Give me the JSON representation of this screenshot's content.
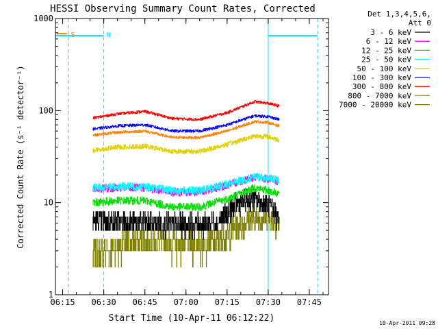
{
  "chart_data": {
    "type": "line",
    "title": "HESSI Observing Summary Count Rates, Corrected",
    "xlabel": "Start Time (10-Apr-11 06:12:22)",
    "ylabel": "Corrected Count Rate (s⁻¹ detector⁻¹)",
    "yscale": "log",
    "ylim": [
      1,
      1000
    ],
    "xlim": [
      "06:12:22",
      "07:52:00"
    ],
    "x_ticks": [
      "06:15",
      "06:30",
      "06:45",
      "07:00",
      "07:15",
      "07:30",
      "07:45"
    ],
    "y_ticks": [
      "1",
      "10",
      "100",
      "1000"
    ],
    "grid": false,
    "legend_position": "right, outside plot",
    "legend_header": [
      "Det 1,3,4,5,6,",
      "Att 0"
    ],
    "timestamp": "10-Apr-2011 09:28",
    "data_start": "06:26",
    "data_end": "07:34",
    "flags": [
      {
        "label": "S",
        "color": "#ff8000",
        "x": "06:17"
      },
      {
        "label": "N",
        "color": "#00e0ff",
        "x": "06:30"
      }
    ],
    "night_level": 650,
    "night_segments": [
      [
        "06:12:22",
        "06:30"
      ],
      [
        "07:30",
        "07:48"
      ]
    ],
    "marker_lines": [
      {
        "x": "06:17",
        "color": "#ff8000",
        "style": "dashed"
      },
      {
        "x": "06:30",
        "color": "#00e0ff",
        "style": "dashed"
      },
      {
        "x": "07:30",
        "color": "#00e0ff",
        "style": "solid"
      },
      {
        "x": "07:48",
        "color": "#00e0ff",
        "style": "dashed"
      }
    ],
    "series": [
      {
        "name": "3 - 6 keV",
        "color": "#000000",
        "noise": 0.28,
        "points": [
          [
            "06:26",
            6.3
          ],
          [
            "06:35",
            6.2
          ],
          [
            "06:45",
            6.0
          ],
          [
            "06:55",
            5.8
          ],
          [
            "07:05",
            5.8
          ],
          [
            "07:12",
            6.3
          ],
          [
            "07:18",
            9.5
          ],
          [
            "07:24",
            11
          ],
          [
            "07:30",
            9.5
          ],
          [
            "07:34",
            6.5
          ]
        ]
      },
      {
        "name": "6 - 12 keV",
        "color": "#ff00ff",
        "noise": 0.1,
        "points": [
          [
            "06:26",
            14
          ],
          [
            "06:35",
            14.5
          ],
          [
            "06:45",
            14.5
          ],
          [
            "06:55",
            13
          ],
          [
            "07:05",
            13
          ],
          [
            "07:15",
            15.5
          ],
          [
            "07:25",
            19
          ],
          [
            "07:30",
            18
          ],
          [
            "07:34",
            17
          ]
        ]
      },
      {
        "name": "12 - 25 keV",
        "color": "#00e000",
        "noise": 0.1,
        "points": [
          [
            "06:26",
            10
          ],
          [
            "06:35",
            10.5
          ],
          [
            "06:45",
            10.5
          ],
          [
            "06:55",
            9
          ],
          [
            "07:05",
            9
          ],
          [
            "07:15",
            11
          ],
          [
            "07:25",
            14.5
          ],
          [
            "07:30",
            13.5
          ],
          [
            "07:34",
            12.5
          ]
        ]
      },
      {
        "name": "25 - 50 keV",
        "color": "#00ffff",
        "noise": 0.1,
        "points": [
          [
            "06:26",
            14.5
          ],
          [
            "06:35",
            15
          ],
          [
            "06:45",
            15
          ],
          [
            "06:55",
            13.5
          ],
          [
            "07:05",
            13.5
          ],
          [
            "07:15",
            16
          ],
          [
            "07:25",
            19
          ],
          [
            "07:30",
            18.5
          ],
          [
            "07:34",
            17.5
          ]
        ]
      },
      {
        "name": "50 - 100 keV",
        "color": "#e0d000",
        "noise": 0.06,
        "points": [
          [
            "06:26",
            37
          ],
          [
            "06:35",
            40
          ],
          [
            "06:45",
            41
          ],
          [
            "06:55",
            36
          ],
          [
            "07:05",
            36
          ],
          [
            "07:15",
            43
          ],
          [
            "07:25",
            53
          ],
          [
            "07:30",
            52
          ],
          [
            "07:34",
            48
          ]
        ]
      },
      {
        "name": "100 - 300 keV",
        "color": "#0000ff",
        "noise": 0.035,
        "points": [
          [
            "06:26",
            63
          ],
          [
            "06:35",
            68
          ],
          [
            "06:45",
            70
          ],
          [
            "06:55",
            60
          ],
          [
            "07:05",
            60
          ],
          [
            "07:15",
            70
          ],
          [
            "07:25",
            88
          ],
          [
            "07:30",
            86
          ],
          [
            "07:34",
            80
          ]
        ]
      },
      {
        "name": "300 - 800 keV",
        "color": "#ff0000",
        "noise": 0.035,
        "points": [
          [
            "06:26",
            83
          ],
          [
            "06:35",
            92
          ],
          [
            "06:45",
            98
          ],
          [
            "06:55",
            82
          ],
          [
            "07:05",
            80
          ],
          [
            "07:15",
            95
          ],
          [
            "07:25",
            125
          ],
          [
            "07:30",
            120
          ],
          [
            "07:34",
            112
          ]
        ]
      },
      {
        "name": "800 - 7000 keV",
        "color": "#ff8000",
        "noise": 0.035,
        "points": [
          [
            "06:26",
            54
          ],
          [
            "06:35",
            58
          ],
          [
            "06:45",
            60
          ],
          [
            "06:55",
            51
          ],
          [
            "07:05",
            51
          ],
          [
            "07:15",
            60
          ],
          [
            "07:25",
            76
          ],
          [
            "07:30",
            74
          ],
          [
            "07:34",
            68
          ]
        ]
      },
      {
        "name": "7000 - 20000 keV",
        "color": "#808000",
        "noise": 0.35,
        "points": [
          [
            "06:26",
            2.6
          ],
          [
            "06:35",
            3.3
          ],
          [
            "06:45",
            3.8
          ],
          [
            "06:55",
            3.5
          ],
          [
            "07:05",
            3.3
          ],
          [
            "07:12",
            3.8
          ],
          [
            "07:20",
            6
          ],
          [
            "07:28",
            7
          ],
          [
            "07:34",
            5.8
          ]
        ]
      }
    ]
  }
}
